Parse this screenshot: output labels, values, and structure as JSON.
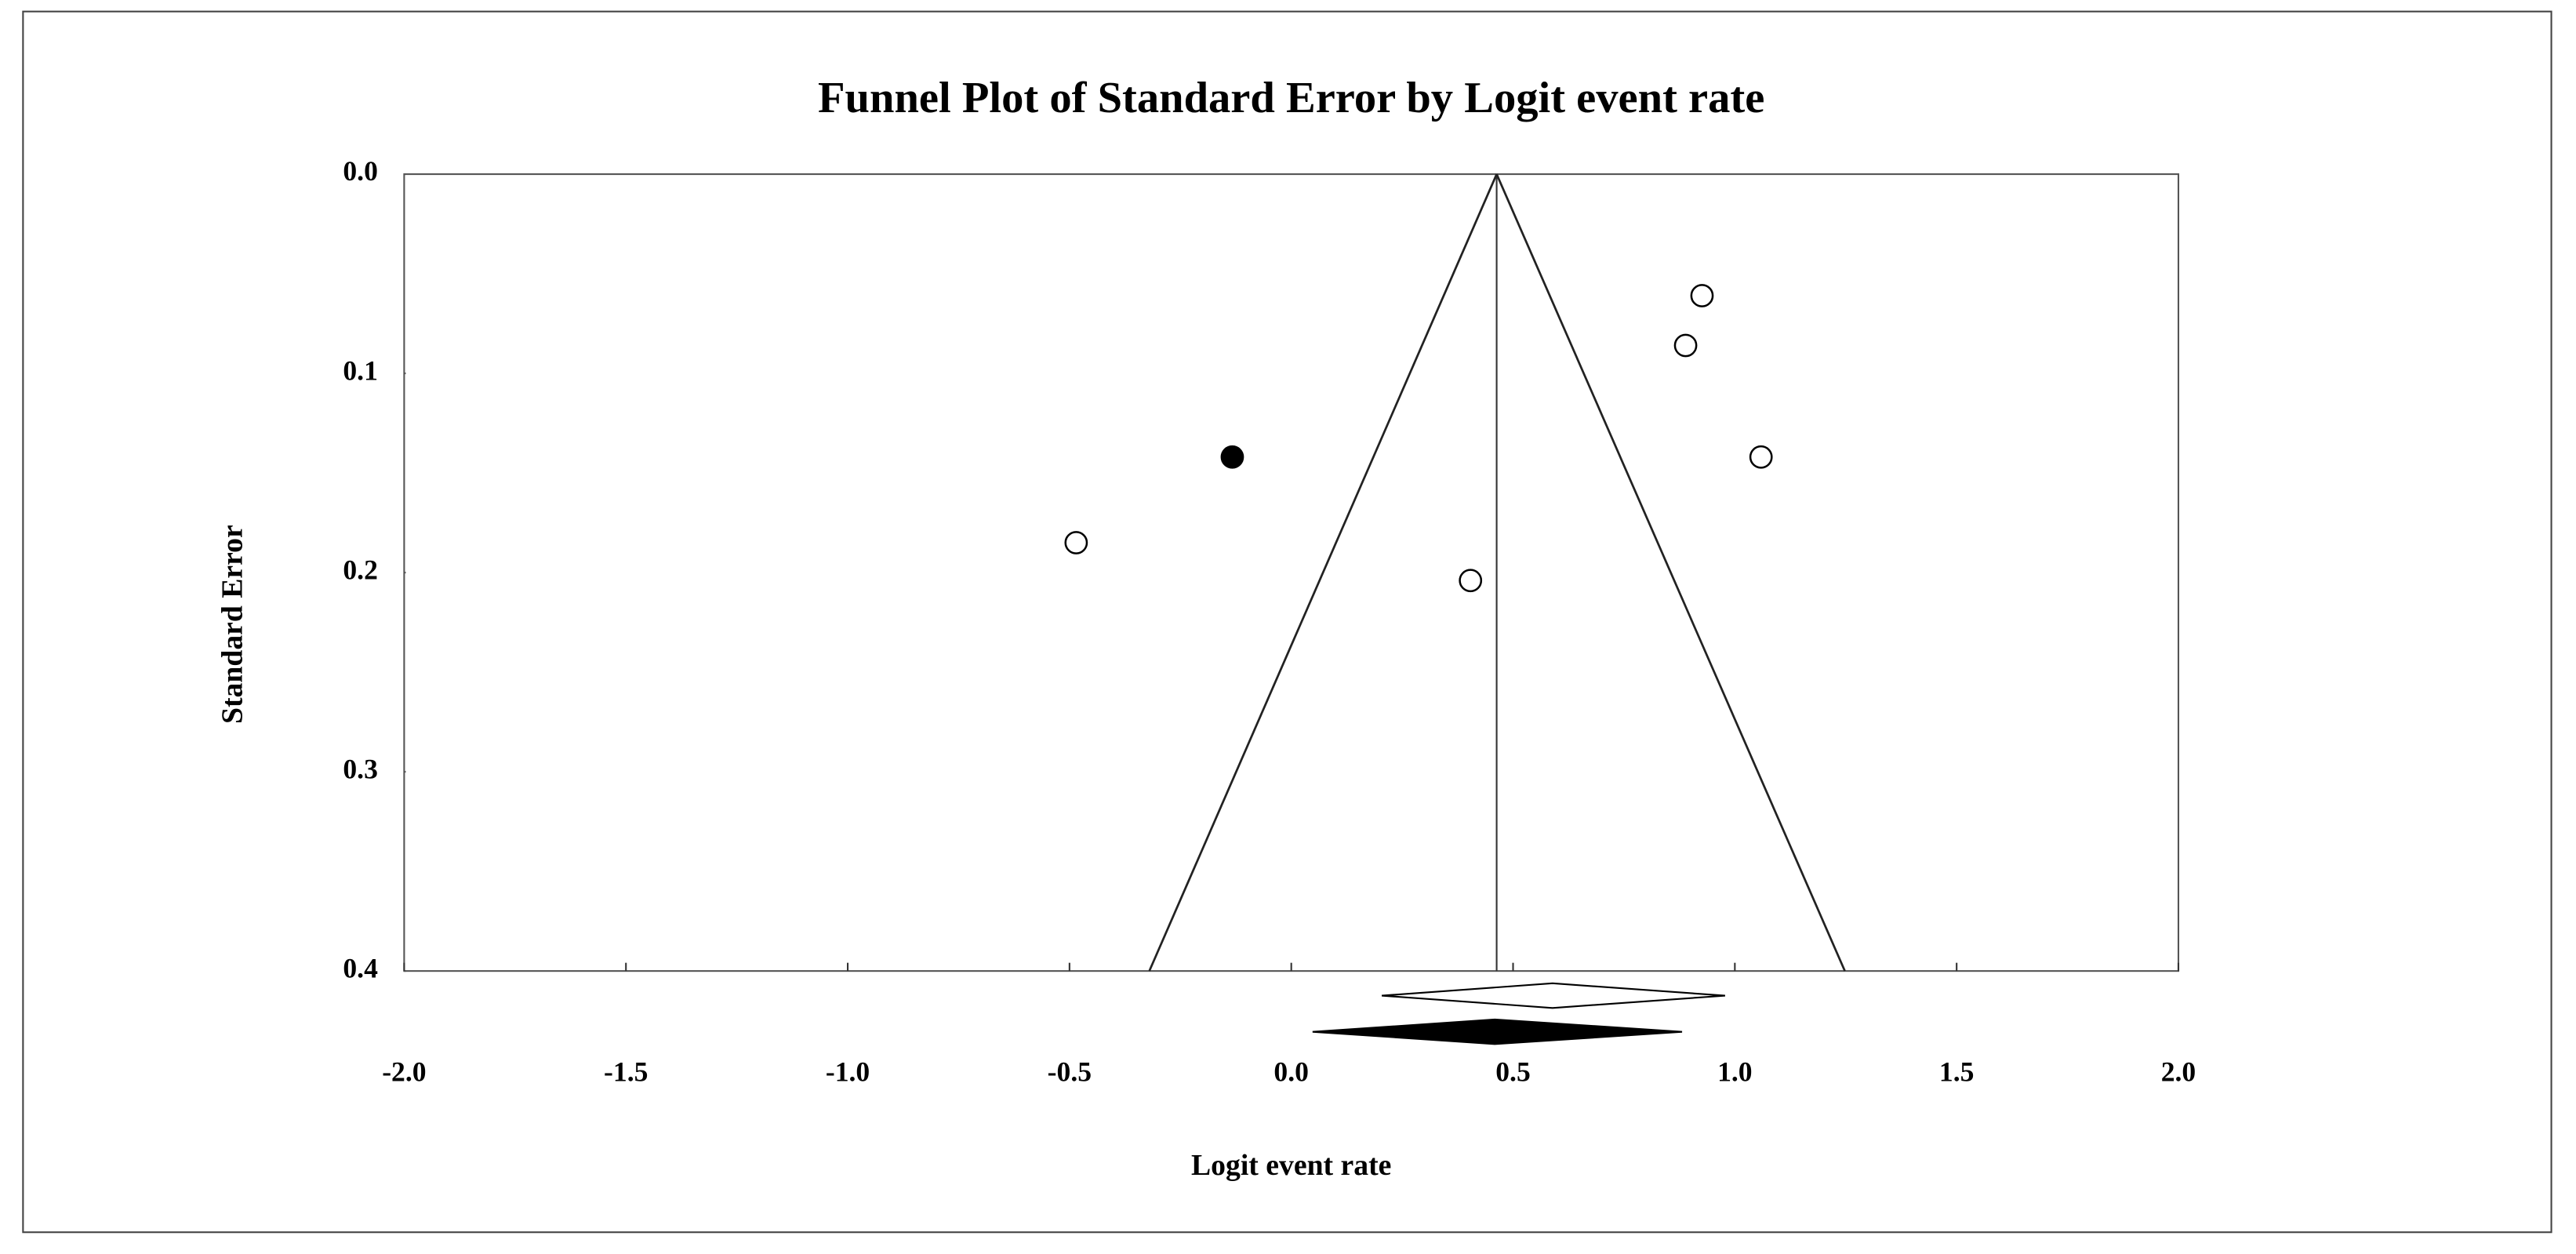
{
  "chart_data": {
    "type": "funnel_scatter",
    "title": "Funnel Plot of Standard Error by Logit event rate",
    "x_label": "Logit event rate",
    "y_label": "Standard Error",
    "xlim": [
      -2,
      2
    ],
    "ylim": [
      0,
      0.4
    ],
    "y_inverted": true,
    "xticks": [
      {
        "value": -2,
        "label": "-2.0"
      },
      {
        "value": -1.5,
        "label": "-1.5"
      },
      {
        "value": -1,
        "label": "-1.0"
      },
      {
        "value": -0.5,
        "label": "-0.5"
      },
      {
        "value": 0,
        "label": "0.0"
      },
      {
        "value": 0.5,
        "label": "0.5"
      },
      {
        "value": 1,
        "label": "1.0"
      },
      {
        "value": 1.5,
        "label": "1.5"
      },
      {
        "value": 2,
        "label": "2.0"
      }
    ],
    "yticks": [
      {
        "value": 0,
        "label": "0.0"
      },
      {
        "value": 0.1,
        "label": "0.1"
      },
      {
        "value": 0.2,
        "label": "0.2"
      },
      {
        "value": 0.3,
        "label": "0.3"
      },
      {
        "value": 0.4,
        "label": "0.4"
      }
    ],
    "funnel_center": 0.463,
    "funnel_bottom": [
      -0.32,
      1.248
    ],
    "series": [
      {
        "color": "#ffffff",
        "x": [
          0.926,
          0.889,
          1.059,
          -0.485,
          0.404
        ],
        "values": [
          0.061,
          0.086,
          0.142,
          0.185,
          0.204
        ]
      },
      {
        "color": "#000000",
        "x": [
          -0.133
        ],
        "values": [
          0.142
        ]
      }
    ],
    "summary": [
      {
        "color": "#ffffff",
        "estimate": 0.589,
        "lower": 0.204,
        "upper": 0.978
      },
      {
        "color": "#000000",
        "estimate": 0.459,
        "lower": 0.048,
        "upper": 0.881
      }
    ]
  }
}
